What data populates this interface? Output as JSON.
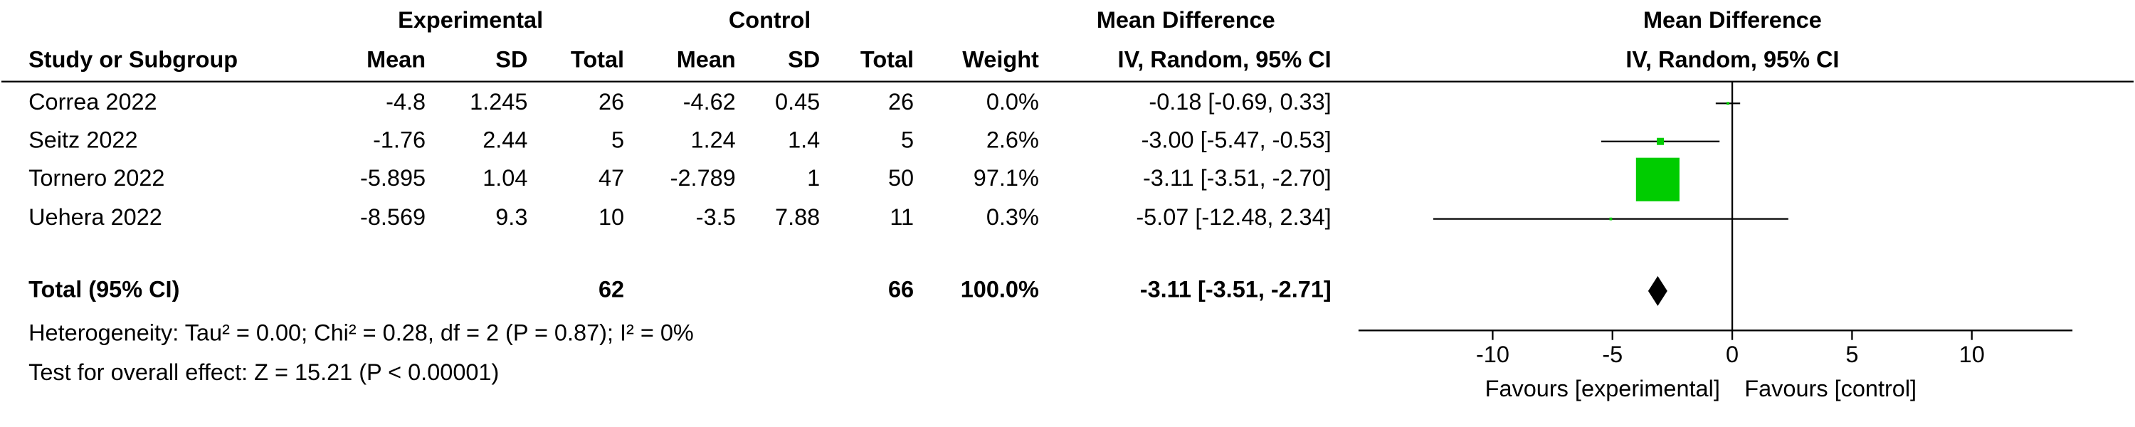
{
  "table": {
    "group_headers": [
      "Experimental",
      "Control",
      "Mean Difference"
    ],
    "headers": [
      "Study or Subgroup",
      "Mean",
      "SD",
      "Total",
      "Mean",
      "SD",
      "Total",
      "Weight",
      "IV, Random, 95% CI"
    ],
    "rows": [
      [
        "Correa 2022",
        "-4.8",
        "1.245",
        "26",
        "-4.62",
        "0.45",
        "26",
        "0.0%",
        "-0.18 [-0.69, 0.33]"
      ],
      [
        "Seitz 2022",
        "-1.76",
        "2.44",
        "5",
        "1.24",
        "1.4",
        "5",
        "2.6%",
        "-3.00 [-5.47, -0.53]"
      ],
      [
        "Tornero 2022",
        "-5.895",
        "1.04",
        "47",
        "-2.789",
        "1",
        "50",
        "97.1%",
        "-3.11 [-3.51, -2.70]"
      ],
      [
        "Uehera 2022",
        "-8.569",
        "9.3",
        "10",
        "-3.5",
        "7.88",
        "11",
        "0.3%",
        "-5.07 [-12.48, 2.34]"
      ]
    ],
    "total": {
      "label": "Total (95% CI)",
      "exp_total": "62",
      "ctrl_total": "66",
      "weight": "100.0%",
      "ci": "-3.11 [-3.51, -2.71]"
    },
    "heterogeneity": "Heterogeneity: Tau² = 0.00; Chi² = 0.28, df = 2 (P = 0.87); I² = 0%",
    "overall_effect": "Test for overall effect: Z = 15.21 (P < 0.00001)"
  },
  "chart_data": {
    "type": "forest",
    "title": "Mean Difference",
    "subtitle": "IV, Random, 95% CI",
    "color": "#00cc00",
    "mean": [
      -0.18,
      -3.0,
      -3.11,
      -5.07
    ],
    "ci_low": [
      -0.69,
      -5.47,
      -3.51,
      -12.48
    ],
    "ci_high": [
      0.33,
      -0.53,
      -2.7,
      2.34
    ],
    "weight": [
      0.0,
      2.6,
      97.1,
      0.3
    ],
    "total": {
      "mean": -3.11,
      "ci_low": -3.51,
      "ci_high": -2.71
    },
    "xlim": [
      -15.6,
      14.2
    ],
    "xticks": [
      -10,
      -5,
      0,
      5,
      10
    ],
    "xlabel_left": "Favours [experimental]",
    "xlabel_right": "Favours [control]"
  }
}
